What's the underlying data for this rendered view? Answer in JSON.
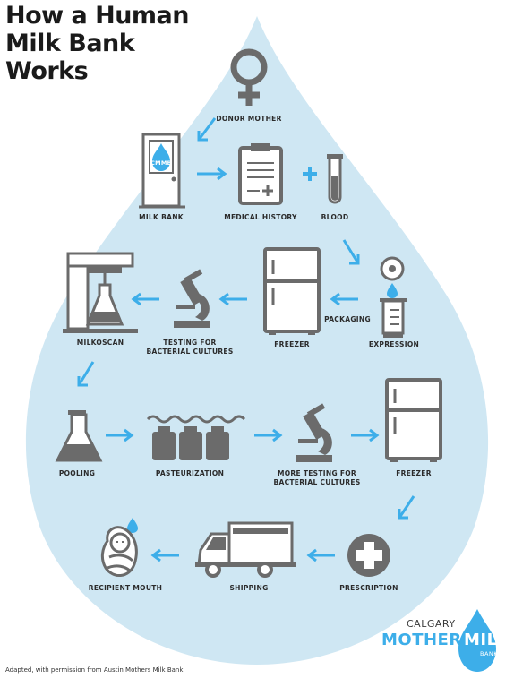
{
  "title_lines": [
    "How a Human",
    "Milk Bank",
    "Works"
  ],
  "steps": {
    "donor_mother": "DONOR MOTHER",
    "milk_bank": "MILK BANK",
    "milk_bank_sign": "CMMB",
    "medical_history": "MEDICAL HISTORY",
    "blood": "BLOOD",
    "packaging": "PACKAGING",
    "expression": "EXPRESSION",
    "freezer_1": "FREEZER",
    "testing_line1": "TESTING FOR",
    "testing_line2": "BACTERIAL CULTURES",
    "milkoscan": "MILKOSCAN",
    "pooling": "POOLING",
    "pasteurization": "PASTEURIZATION",
    "more_testing_line1": "MORE TESTING FOR",
    "more_testing_line2": "BACTERIAL CULTURES",
    "freezer_2": "FREEZER",
    "prescription": "PRESCRIPTION",
    "shipping": "SHIPPING",
    "recipient_mouth": "RECIPIENT MOUTH"
  },
  "logo": {
    "calgary": "CALGARY",
    "mothers": "MOTHERS",
    "milk": "MILK",
    "bank": "BANK"
  },
  "credit": "Adapted, with permission from Austin Mothers Milk Bank",
  "colors": {
    "drop": "#cfe7f3",
    "accent": "#3daee9",
    "icon": "#6b6b6b",
    "text": "#2b2b2b"
  }
}
